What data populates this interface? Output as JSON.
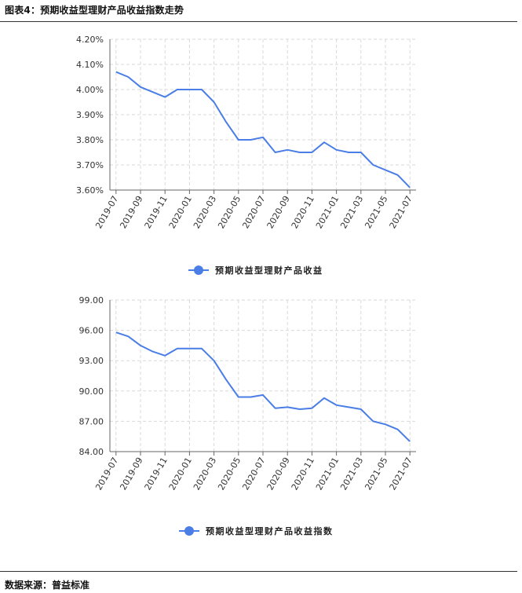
{
  "title": "图表4：预期收益型理财产品收益指数走势",
  "source": "数据来源：普益标准",
  "colors": {
    "series": "#4a7ee6",
    "grid": "#d9d9d9",
    "axis": "#666666"
  },
  "chart_data": [
    {
      "type": "line",
      "categories": [
        "2019-07",
        "2019-08",
        "2019-09",
        "2019-10",
        "2019-11",
        "2019-12",
        "2020-01",
        "2020-02",
        "2020-03",
        "2020-04",
        "2020-05",
        "2020-06",
        "2020-07",
        "2020-08",
        "2020-09",
        "2020-10",
        "2020-11",
        "2020-12",
        "2021-01",
        "2021-02",
        "2021-03",
        "2021-04",
        "2021-05",
        "2021-06",
        "2021-07"
      ],
      "tick_labels": [
        "2019-07",
        "2019-09",
        "2019-11",
        "2020-01",
        "2020-03",
        "2020-05",
        "2020-07",
        "2020-09",
        "2020-11",
        "2021-01",
        "2021-03",
        "2021-05",
        "2021-07"
      ],
      "series": [
        {
          "name": "预期收益型理财产品收益",
          "values": [
            4.07,
            4.05,
            4.01,
            3.99,
            3.97,
            4.0,
            4.0,
            4.0,
            3.95,
            3.87,
            3.8,
            3.8,
            3.81,
            3.75,
            3.76,
            3.75,
            3.75,
            3.79,
            3.76,
            3.75,
            3.75,
            3.7,
            3.68,
            3.66,
            3.61
          ]
        }
      ],
      "ylim": [
        3.6,
        4.2
      ],
      "yticks": [
        "4.20%",
        "4.10%",
        "4.00%",
        "3.90%",
        "3.80%",
        "3.70%",
        "3.60%"
      ],
      "grid": true,
      "legend": "bottom"
    },
    {
      "type": "line",
      "categories": [
        "2019-07",
        "2019-08",
        "2019-09",
        "2019-10",
        "2019-11",
        "2019-12",
        "2020-01",
        "2020-02",
        "2020-03",
        "2020-04",
        "2020-05",
        "2020-06",
        "2020-07",
        "2020-08",
        "2020-09",
        "2020-10",
        "2020-11",
        "2020-12",
        "2021-01",
        "2021-02",
        "2021-03",
        "2021-04",
        "2021-05",
        "2021-06",
        "2021-07"
      ],
      "tick_labels": [
        "2019-07",
        "2019-09",
        "2019-11",
        "2020-01",
        "2020-03",
        "2020-05",
        "2020-07",
        "2020-09",
        "2020-11",
        "2021-01",
        "2021-03",
        "2021-05",
        "2021-07"
      ],
      "series": [
        {
          "name": "预期收益型理财产品收益指数",
          "values": [
            95.8,
            95.4,
            94.5,
            93.9,
            93.5,
            94.2,
            94.2,
            94.2,
            93.0,
            91.1,
            89.4,
            89.4,
            89.6,
            88.3,
            88.4,
            88.2,
            88.3,
            89.3,
            88.6,
            88.4,
            88.2,
            87.0,
            86.7,
            86.2,
            85.0
          ]
        }
      ],
      "ylim": [
        84.0,
        99.0
      ],
      "yticks": [
        "99.00",
        "96.00",
        "93.00",
        "90.00",
        "87.00",
        "84.00"
      ],
      "grid": true,
      "legend": "bottom"
    }
  ]
}
